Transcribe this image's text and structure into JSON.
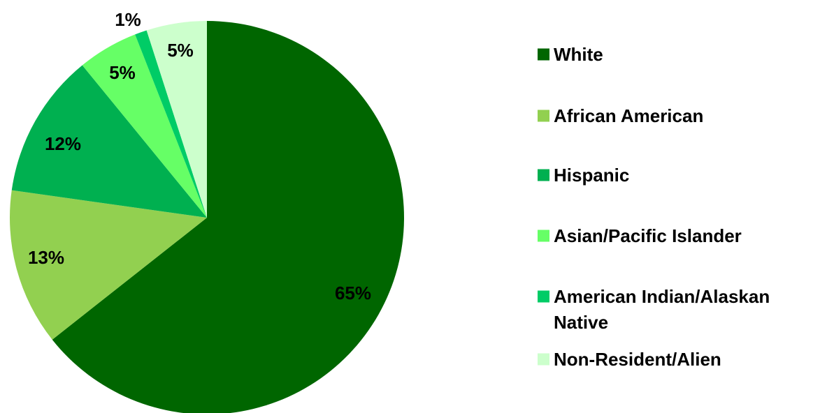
{
  "chart_data": {
    "type": "pie",
    "title": "",
    "slices": [
      {
        "label": "White",
        "value": 65,
        "display": "65%",
        "color": "#006600"
      },
      {
        "label": "African American",
        "value": 13,
        "display": "13%",
        "color": "#92D050"
      },
      {
        "label": "Hispanic",
        "value": 12,
        "display": "12%",
        "color": "#00B050"
      },
      {
        "label": "Asian/Pacific Islander",
        "value": 5,
        "display": "5%",
        "color": "#66FF66"
      },
      {
        "label": "American Indian/Alaskan Native",
        "value": 1,
        "display": "1%",
        "color": "#00CC66"
      },
      {
        "label": "Non-Resident/Alien",
        "value": 5,
        "display": "5%",
        "color": "#CCFFCC"
      }
    ],
    "legend_position": "right"
  },
  "legend": {
    "items": [
      {
        "lines": [
          "White"
        ]
      },
      {
        "lines": [
          "African American"
        ]
      },
      {
        "lines": [
          "Hispanic"
        ]
      },
      {
        "lines": [
          "Asian/Pacific Islander"
        ]
      },
      {
        "lines": [
          "American Indian/Alaskan",
          "Native"
        ]
      },
      {
        "lines": [
          "Non-Resident/Alien"
        ]
      }
    ]
  }
}
